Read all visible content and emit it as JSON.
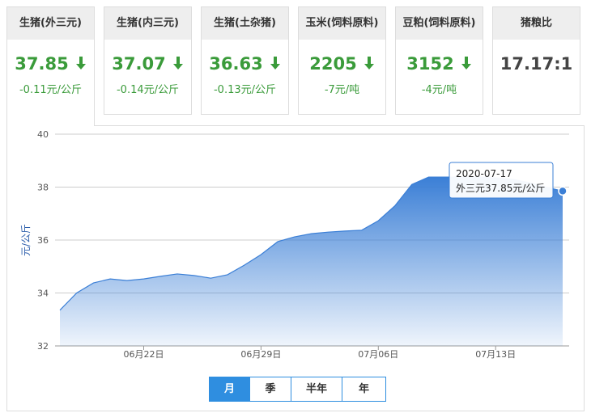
{
  "cards": [
    {
      "title": "生猪(外三元)",
      "value": "37.85",
      "change": "-0.11元/公斤",
      "trend": "down"
    },
    {
      "title": "生猪(内三元)",
      "value": "37.07",
      "change": "-0.14元/公斤",
      "trend": "down"
    },
    {
      "title": "生猪(土杂猪)",
      "value": "36.63",
      "change": "-0.13元/公斤",
      "trend": "down"
    },
    {
      "title": "玉米(饲料原料)",
      "value": "2205",
      "change": "-7元/吨",
      "trend": "down"
    },
    {
      "title": "豆粕(饲料原料)",
      "value": "3152",
      "change": "-4元/吨",
      "trend": "down"
    },
    {
      "title": "猪粮比",
      "value": "17.17:1"
    }
  ],
  "chart_data": {
    "type": "area",
    "y_label": "元/公斤",
    "categories": [
      null,
      null,
      null,
      null,
      null,
      "06月22日",
      null,
      null,
      null,
      null,
      null,
      null,
      "06月29日",
      null,
      null,
      null,
      null,
      null,
      null,
      "07月06日",
      null,
      null,
      null,
      null,
      null,
      null,
      "07月13日",
      null,
      null,
      null,
      null
    ],
    "values": [
      33.35,
      34.0,
      34.38,
      34.53,
      34.47,
      34.53,
      34.63,
      34.72,
      34.66,
      34.56,
      34.69,
      35.05,
      35.45,
      35.94,
      36.12,
      36.24,
      36.3,
      36.34,
      36.37,
      36.73,
      37.3,
      38.1,
      38.38,
      38.38,
      38.38,
      38.38,
      38.35,
      38.3,
      38.17,
      38.0,
      37.85
    ],
    "color": "#3b7fd6",
    "ylim": [
      32,
      40
    ],
    "yticks": [
      32,
      34,
      36,
      38,
      40
    ],
    "grid": true,
    "tooltip": {
      "date": "2020-07-17",
      "text": "外三元37.85元/公斤"
    }
  },
  "buttons": [
    {
      "label": "月",
      "active": true
    },
    {
      "label": "季"
    },
    {
      "label": "半年"
    },
    {
      "label": "年"
    }
  ]
}
